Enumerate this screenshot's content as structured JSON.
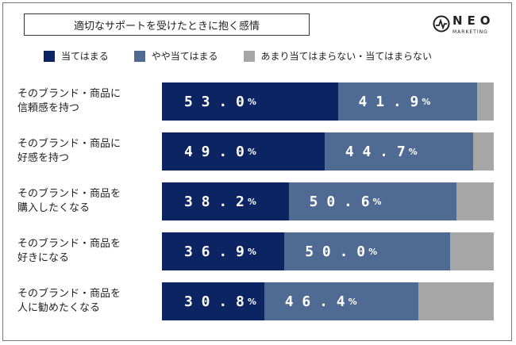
{
  "title": "適切なサポートを受けたときに抱く感情",
  "logo": {
    "main": "NEO",
    "sub": "MARKETING",
    "icon": "pulse-circle-icon"
  },
  "colors": {
    "s1": "#0c2461",
    "s2": "#506b93",
    "s3": "#a6a6a6"
  },
  "chart_data": {
    "type": "bar",
    "orientation": "horizontal",
    "stacked": true,
    "legend_position": "top",
    "xlim": [
      0,
      100
    ],
    "categories": [
      [
        "そのブランド・商品に",
        "信頼感を持つ"
      ],
      [
        "そのブランド・商品に",
        "好感を持つ"
      ],
      [
        "そのブランド・商品を",
        "購入したくなる"
      ],
      [
        "そのブランド・商品を",
        "好きになる"
      ],
      [
        "そのブランド・商品を",
        "人に勧めたくなる"
      ]
    ],
    "series": [
      {
        "name": "当てはまる",
        "values": [
          53.0,
          49.0,
          38.2,
          36.9,
          30.8
        ],
        "labels": [
          "53.0",
          "49.0",
          "38.2",
          "36.9",
          "30.8"
        ]
      },
      {
        "name": "やや当てはまる",
        "values": [
          41.9,
          44.7,
          50.6,
          50.0,
          46.4
        ],
        "labels": [
          "41.9",
          "44.7",
          "50.6",
          "50.0",
          "46.4"
        ]
      },
      {
        "name": "あまり当てはまらない・当てはまらない",
        "values": [
          5.1,
          6.3,
          11.2,
          13.1,
          22.8
        ]
      }
    ],
    "unit": "%"
  }
}
